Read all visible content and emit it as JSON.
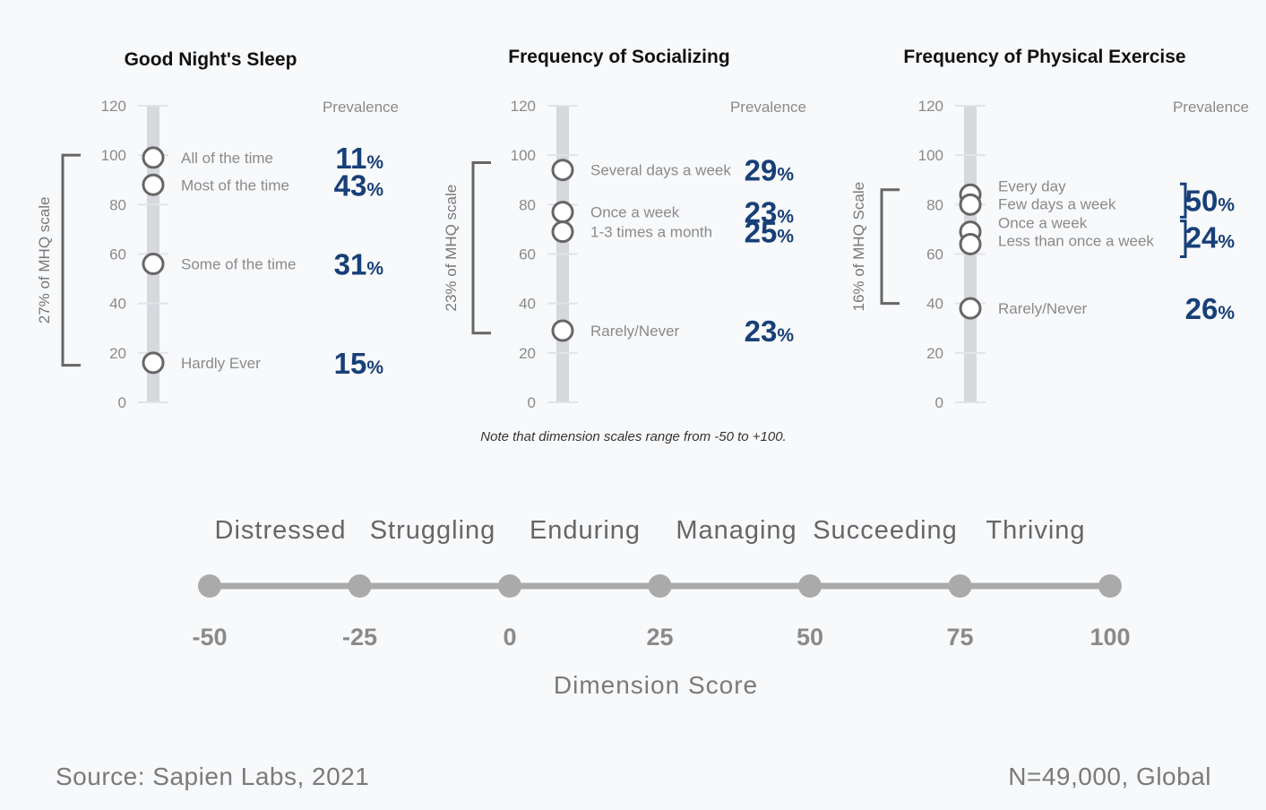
{
  "chart_data": [
    {
      "type": "scatter",
      "title": "Good Night's Sleep",
      "prevalence_label": "Prevalence",
      "y_ticks": [
        0,
        20,
        40,
        60,
        80,
        100,
        120
      ],
      "ylim": [
        0,
        120
      ],
      "bracket_label": "27% of MHQ scale",
      "bracket_range": [
        15,
        100
      ],
      "points": [
        {
          "label": "All of the time",
          "y": 99,
          "pct": "11"
        },
        {
          "label": "Most of the time",
          "y": 88,
          "pct": "43"
        },
        {
          "label": "Some of the time",
          "y": 56,
          "pct": "31"
        },
        {
          "label": "Hardly Ever",
          "y": 16,
          "pct": "15"
        }
      ],
      "group_brackets": []
    },
    {
      "type": "scatter",
      "title": "Frequency of Socializing",
      "prevalence_label": "Prevalence",
      "y_ticks": [
        0,
        20,
        40,
        60,
        80,
        100,
        120
      ],
      "ylim": [
        0,
        120
      ],
      "bracket_label": "23% of MHQ scale",
      "bracket_range": [
        28,
        97
      ],
      "points": [
        {
          "label": "Several days a week",
          "y": 94,
          "pct": "29"
        },
        {
          "label": "Once a week",
          "y": 77,
          "pct": "23"
        },
        {
          "label": "1-3 times a month",
          "y": 69,
          "pct": "25"
        },
        {
          "label": "Rarely/Never",
          "y": 29,
          "pct": "23"
        }
      ],
      "group_brackets": []
    },
    {
      "type": "scatter",
      "title": "Frequency of Physical Exercise",
      "prevalence_label": "Prevalence",
      "y_ticks": [
        0,
        20,
        40,
        60,
        80,
        100,
        120
      ],
      "ylim": [
        0,
        120
      ],
      "bracket_label": "16% of MHQ Scale",
      "bracket_range": [
        40,
        86
      ],
      "points": [
        {
          "label": "Every day",
          "y": 84,
          "pct": ""
        },
        {
          "label": "Few days a week",
          "y": 80,
          "pct": "50"
        },
        {
          "label": "Once a week",
          "y": 69,
          "pct": ""
        },
        {
          "label": "Less than once a week",
          "y": 64,
          "pct": "24"
        },
        {
          "label": "Rarely/Never",
          "y": 38,
          "pct": "26"
        }
      ],
      "group_brackets": [
        [
          0,
          1
        ],
        [
          2,
          3
        ]
      ]
    }
  ],
  "note": "Note that dimension scales range from -50 to +100.",
  "scale": {
    "categories": [
      "Distressed",
      "Struggling",
      "Enduring",
      "Managing",
      "Succeeding",
      "Thriving"
    ],
    "scores": [
      -50,
      -25,
      0,
      25,
      50,
      75,
      100
    ],
    "title": "Dimension Score"
  },
  "footer": {
    "source": "Source: Sapien Labs, 2021",
    "sample": "N=49,000, Global"
  },
  "colors": {
    "accent": "#173f78",
    "bar": "#d6d8de",
    "marker": "#666666",
    "scale_line": "#aaaaaa"
  }
}
